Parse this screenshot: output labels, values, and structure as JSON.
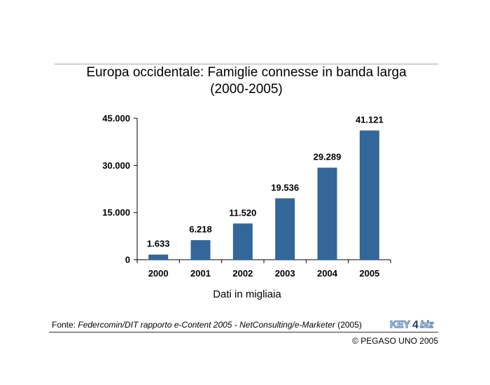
{
  "title_lines": [
    "Europa occidentale: Famiglie connesse in banda larga",
    "(2000-2005)"
  ],
  "caption": "Dati in migliaia",
  "source": {
    "prefix": "Fonte: ",
    "italic": "Federcomin/DIT rapporto e-Content 2005 - NetConsulting/e-Marketer",
    "suffix": " (2005)"
  },
  "logo_text": {
    "left": "KEY",
    "mid": "4",
    "right": "biz"
  },
  "copyright": "© PEGASO UNO 2005",
  "colors": {
    "bar": "#336699",
    "axis": "#000000",
    "logo_blue": "#5f86b3",
    "logo_dark": "#1f3f6e"
  },
  "chart_data": {
    "type": "bar",
    "title": "Europa occidentale: Famiglie connesse in banda larga (2000-2005)",
    "xlabel": "Dati in migliaia",
    "ylabel": "",
    "categories": [
      "2000",
      "2001",
      "2002",
      "2003",
      "2004",
      "2005"
    ],
    "values": [
      1633,
      6218,
      11520,
      19536,
      29289,
      41121
    ],
    "value_labels": [
      "1.633",
      "6.218",
      "11.520",
      "19.536",
      "29.289",
      "41.121"
    ],
    "ylim": [
      0,
      45000
    ],
    "yticks": [
      0,
      15000,
      30000,
      45000
    ],
    "ytick_labels": [
      "0",
      "15.000",
      "30.000",
      "45.000"
    ],
    "grid": false,
    "legend": "none"
  }
}
